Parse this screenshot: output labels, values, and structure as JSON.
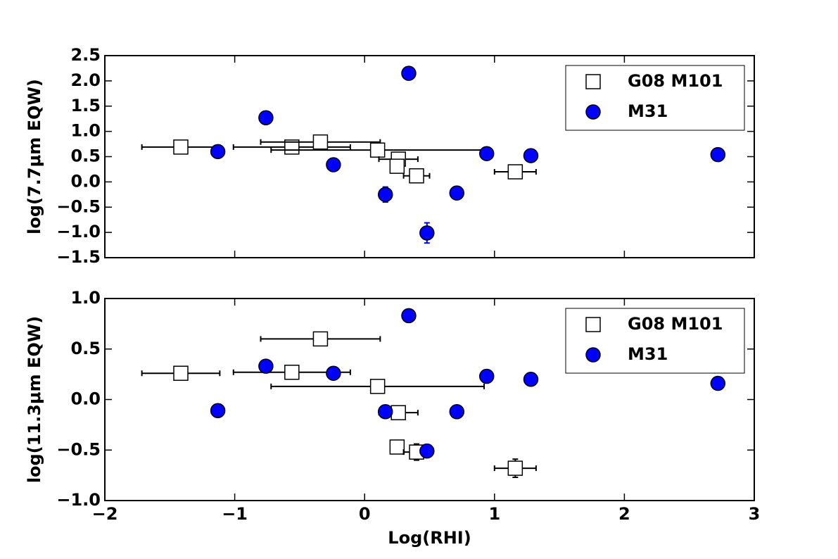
{
  "chart_data": [
    {
      "type": "scatter",
      "ylabel": "log(7.7μm EQW)",
      "ylim": [
        -1.5,
        2.5
      ],
      "yticks": [
        2.5,
        {
          "value": 2.0,
          "label": "2.0"
        },
        1.5,
        {
          "value": 1.0,
          "label": "1.0"
        },
        0.5,
        {
          "value": 0.0,
          "label": "0.0"
        },
        {
          "value": -0.5,
          "label": "−0.5"
        },
        {
          "value": -1.0,
          "label": "−1.0"
        },
        {
          "value": -1.5,
          "label": "−1.5"
        }
      ],
      "legend": "upper right",
      "series": [
        {
          "name": "G08 M101",
          "marker": "square",
          "color": "#ffffff",
          "x": [
            -1.415,
            -0.56,
            -0.34,
            0.1,
            0.26,
            0.25,
            0.4,
            1.16
          ],
          "values": [
            0.69,
            0.69,
            0.79,
            0.63,
            0.45,
            0.31,
            0.12,
            0.2
          ],
          "xerr": [
            0.3,
            0.45,
            0.46,
            0.82,
            0.15,
            null,
            0.1,
            0.16
          ]
        },
        {
          "name": "M31",
          "marker": "circle",
          "color": "#0000ff",
          "x": [
            -1.13,
            -0.76,
            -0.24,
            0.16,
            0.34,
            0.48,
            0.71,
            0.94,
            1.28,
            2.72
          ],
          "values": [
            0.6,
            1.27,
            0.34,
            -0.25,
            2.15,
            -1.01,
            -0.22,
            0.56,
            0.52,
            0.54
          ],
          "yerr": [
            null,
            null,
            null,
            0.15,
            null,
            0.2,
            null,
            null,
            null,
            null
          ]
        }
      ]
    },
    {
      "type": "scatter",
      "ylabel": "log(11.3μm EQW)",
      "xlabel": "Log(RHI)",
      "xlim": [
        -2,
        3
      ],
      "xticks": [
        {
          "value": -2,
          "label": "−2"
        },
        {
          "value": -1,
          "label": "−1"
        },
        0,
        1,
        2,
        3
      ],
      "ylim": [
        -1.0,
        1.0
      ],
      "yticks": [
        {
          "value": 1.0,
          "label": "1.0"
        },
        0.5,
        {
          "value": 0.0,
          "label": "0.0"
        },
        {
          "value": -0.5,
          "label": "−0.5"
        },
        {
          "value": -1.0,
          "label": "−1.0"
        }
      ],
      "legend": "upper right",
      "series": [
        {
          "name": "G08 M101",
          "marker": "square",
          "color": "#ffffff",
          "x": [
            -1.415,
            -0.56,
            -0.34,
            0.1,
            0.26,
            0.25,
            0.4,
            1.16
          ],
          "values": [
            0.26,
            0.27,
            0.6,
            0.13,
            -0.13,
            -0.47,
            -0.52,
            -0.68
          ],
          "xerr": [
            0.3,
            0.45,
            0.46,
            0.82,
            0.15,
            null,
            0.1,
            0.16
          ],
          "yerr": [
            null,
            null,
            null,
            null,
            null,
            null,
            0.08,
            0.09
          ]
        },
        {
          "name": "M31",
          "marker": "circle",
          "color": "#0000ff",
          "x": [
            -1.13,
            -0.76,
            -0.24,
            0.16,
            0.34,
            0.48,
            0.71,
            0.94,
            1.28,
            2.72
          ],
          "values": [
            -0.11,
            0.33,
            0.26,
            -0.12,
            0.83,
            -0.51,
            -0.12,
            0.23,
            0.2,
            0.16
          ]
        }
      ]
    }
  ]
}
